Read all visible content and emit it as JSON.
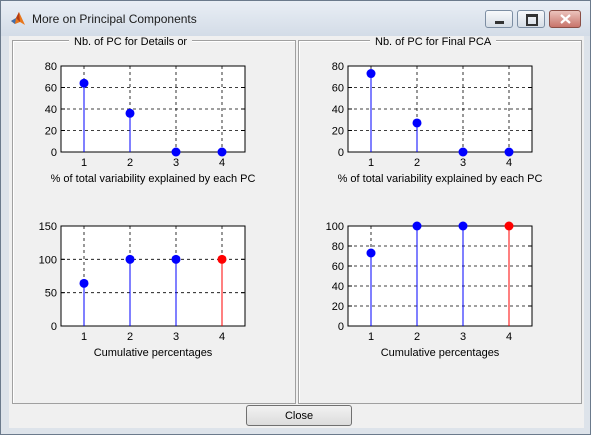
{
  "window": {
    "title": "More on Principal Components"
  },
  "panels": [
    {
      "title": "Nb. of PC for Details or"
    },
    {
      "title": "Nb. of PC for Final PCA"
    }
  ],
  "buttons": {
    "close": "Close"
  },
  "chart_data": [
    {
      "type": "stem",
      "x": [
        1,
        2,
        3,
        4
      ],
      "values": [
        64,
        36,
        0,
        0
      ],
      "xlabel": "% of total variability explained by each PC",
      "ylim": [
        0,
        80
      ],
      "yticks": [
        0,
        20,
        40,
        60,
        80
      ],
      "xlim": [
        0.5,
        4.5
      ],
      "grid": true,
      "colors": [
        "#0000ff",
        "#0000ff",
        "#0000ff",
        "#0000ff"
      ]
    },
    {
      "type": "stem",
      "x": [
        1,
        2,
        3,
        4
      ],
      "values": [
        64,
        100,
        100,
        100
      ],
      "xlabel": "Cumulative percentages",
      "ylim": [
        0,
        150
      ],
      "yticks": [
        0,
        50,
        100,
        150
      ],
      "xlim": [
        0.5,
        4.5
      ],
      "grid": true,
      "colors": [
        "#0000ff",
        "#0000ff",
        "#0000ff",
        "#ff0000"
      ]
    },
    {
      "type": "stem",
      "x": [
        1,
        2,
        3,
        4
      ],
      "values": [
        73,
        27,
        0,
        0
      ],
      "xlabel": "% of total variability explained by each PC",
      "ylim": [
        0,
        80
      ],
      "yticks": [
        0,
        20,
        40,
        60,
        80
      ],
      "xlim": [
        0.5,
        4.5
      ],
      "grid": true,
      "colors": [
        "#0000ff",
        "#0000ff",
        "#0000ff",
        "#0000ff"
      ]
    },
    {
      "type": "stem",
      "x": [
        1,
        2,
        3,
        4
      ],
      "values": [
        73,
        100,
        100,
        100
      ],
      "xlabel": "Cumulative percentages",
      "ylim": [
        0,
        100
      ],
      "yticks": [
        0,
        20,
        40,
        60,
        80,
        100
      ],
      "xlim": [
        0.5,
        4.5
      ],
      "grid": true,
      "colors": [
        "#0000ff",
        "#0000ff",
        "#0000ff",
        "#ff0000"
      ]
    }
  ]
}
